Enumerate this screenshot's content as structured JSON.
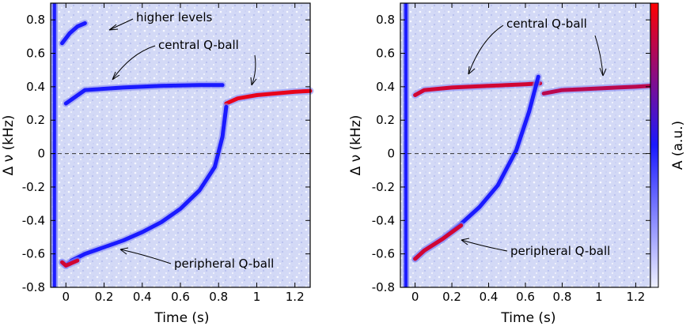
{
  "chart_data": [
    {
      "type": "heatmap",
      "xlabel": "Time (s)",
      "ylabel": "Δ ν (kHz)",
      "xlim": [
        -0.08,
        1.28
      ],
      "ylim": [
        -0.8,
        0.9
      ],
      "xticks": [
        0,
        0.2,
        0.4,
        0.6,
        0.8,
        1,
        1.2
      ],
      "xtick_labels": [
        "0",
        "0.2",
        "0.4",
        "0.6",
        "0.8",
        "1",
        "1.2"
      ],
      "yticks": [
        -0.8,
        -0.6,
        -0.4,
        -0.2,
        0,
        0.2,
        0.4,
        0.6,
        0.8
      ],
      "ytick_labels": [
        "-0.8",
        "-0.6",
        "-0.4",
        "-0.2",
        "0",
        "0.2",
        "0.4",
        "0.6",
        "0.8"
      ],
      "reference_line_y": 0,
      "series": [
        {
          "name": "central Q-ball",
          "segments": [
            {
              "x": [
                0.0,
                0.1,
                0.3,
                0.5,
                0.7,
                0.82
              ],
              "y": [
                0.3,
                0.38,
                0.395,
                0.405,
                0.41,
                0.41
              ],
              "level": 0.2
            },
            {
              "x": [
                0.84,
                0.9,
                1.0,
                1.1,
                1.2,
                1.28
              ],
              "y": [
                0.3,
                0.33,
                0.35,
                0.36,
                0.37,
                0.375
              ],
              "level": 0.95
            }
          ]
        },
        {
          "name": "peripheral Q-ball",
          "segments": [
            {
              "x": [
                -0.02,
                0.0,
                0.03,
                0.1,
                0.2,
                0.3,
                0.4,
                0.5,
                0.6,
                0.7,
                0.78,
                0.82,
                0.84
              ],
              "y": [
                -0.65,
                -0.67,
                -0.64,
                -0.6,
                -0.56,
                -0.52,
                -0.47,
                -0.41,
                -0.33,
                -0.22,
                -0.08,
                0.1,
                0.28
              ],
              "level": 0.2
            },
            {
              "x": [
                -0.02,
                0.0,
                0.06
              ],
              "y": [
                -0.65,
                -0.67,
                -0.64
              ],
              "level": 0.9
            }
          ]
        },
        {
          "name": "higher levels",
          "segments": [
            {
              "x": [
                -0.02,
                0.02,
                0.06,
                0.1
              ],
              "y": [
                0.66,
                0.72,
                0.76,
                0.78
              ],
              "level": 0.2
            }
          ]
        }
      ],
      "vertical_band_x": -0.06,
      "annotations": [
        "higher levels",
        "central Q-ball",
        "peripheral Q-ball"
      ]
    },
    {
      "type": "heatmap",
      "xlabel": "Time (s)",
      "ylabel": "Δ ν (kHz)",
      "xlim": [
        -0.08,
        1.28
      ],
      "ylim": [
        -0.8,
        0.9
      ],
      "xticks": [
        0,
        0.2,
        0.4,
        0.6,
        0.8,
        1,
        1.2
      ],
      "xtick_labels": [
        "0",
        "0.2",
        "0.4",
        "0.6",
        "0.8",
        "1",
        "1.2"
      ],
      "yticks": [
        -0.8,
        -0.6,
        -0.4,
        -0.2,
        0,
        0.2,
        0.4,
        0.6,
        0.8
      ],
      "ytick_labels": [
        "-0.8",
        "-0.6",
        "-0.4",
        "-0.2",
        "0",
        "0.2",
        "0.4",
        "0.6",
        "0.8"
      ],
      "reference_line_y": 0,
      "colorbar_label": "A (a.u.)",
      "series": [
        {
          "name": "central Q-ball",
          "segments": [
            {
              "x": [
                0.0,
                0.05,
                0.2,
                0.4,
                0.6,
                0.68
              ],
              "y": [
                0.35,
                0.38,
                0.395,
                0.405,
                0.415,
                0.42
              ],
              "level": 0.9
            },
            {
              "x": [
                0.7,
                0.8,
                0.9,
                1.0,
                1.1,
                1.2,
                1.28
              ],
              "y": [
                0.36,
                0.38,
                0.385,
                0.39,
                0.395,
                0.4,
                0.405
              ],
              "level": 0.85
            }
          ]
        },
        {
          "name": "peripheral Q-ball",
          "segments": [
            {
              "x": [
                0.0,
                0.05,
                0.15,
                0.25,
                0.35,
                0.45,
                0.55,
                0.62,
                0.67
              ],
              "y": [
                -0.63,
                -0.58,
                -0.51,
                -0.42,
                -0.32,
                -0.19,
                0.02,
                0.25,
                0.46
              ],
              "level": 0.25
            },
            {
              "x": [
                0.0,
                0.05,
                0.15,
                0.25
              ],
              "y": [
                -0.63,
                -0.58,
                -0.51,
                -0.43
              ],
              "level": 0.9
            }
          ]
        }
      ],
      "vertical_band_x": -0.05,
      "annotations": [
        "central Q-ball",
        "peripheral Q-ball"
      ]
    }
  ],
  "colors": {
    "low": "#e4e8fc",
    "mid": "#1a1aff",
    "high": "#ff0000"
  }
}
